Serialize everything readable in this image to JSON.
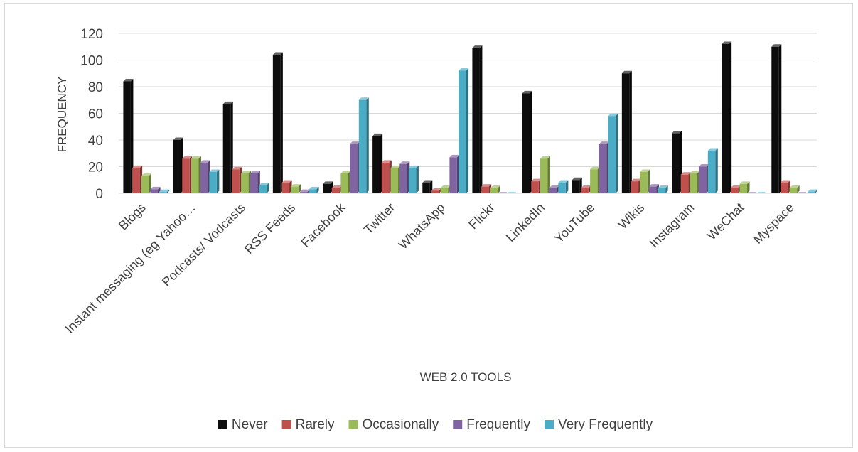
{
  "chart_data": {
    "type": "bar",
    "xlabel": "WEB 2.0 TOOLS",
    "ylabel": "FREQUENCY",
    "ylim": [
      0,
      120
    ],
    "yticks": [
      0,
      20,
      40,
      60,
      80,
      100,
      120
    ],
    "grid": true,
    "legend_position": "bottom",
    "categories": [
      "Blogs",
      "Instant messaging (eg Yahoo…",
      "Podcasts/ Vodcasts",
      "RSS Feeds",
      "Facebook",
      "Twitter",
      "WhatsApp",
      "Flickr",
      "LinkedIn",
      "YouTube",
      "Wikis",
      "Instagram",
      "WeChat",
      "Myspace"
    ],
    "series": [
      {
        "name": "Never",
        "color": "#0d0d0d",
        "values": [
          84,
          40,
          67,
          104,
          7,
          43,
          8,
          109,
          75,
          10,
          90,
          45,
          112,
          110
        ]
      },
      {
        "name": "Rarely",
        "color": "#c0504d",
        "values": [
          19,
          26,
          18,
          8,
          4,
          23,
          2,
          5,
          9,
          4,
          9,
          14,
          4,
          8
        ]
      },
      {
        "name": "Occasionally",
        "color": "#9bbb59",
        "values": [
          13,
          26,
          15,
          5,
          15,
          19,
          4,
          4,
          26,
          18,
          16,
          15,
          7,
          4
        ]
      },
      {
        "name": "Frequently",
        "color": "#8064a2",
        "values": [
          3,
          23,
          15,
          1,
          37,
          22,
          27,
          0,
          4,
          37,
          5,
          20,
          0,
          0
        ]
      },
      {
        "name": "Very Frequently",
        "color": "#4bacc6",
        "values": [
          1,
          16,
          6,
          3,
          70,
          19,
          92,
          0,
          8,
          58,
          4,
          32,
          0,
          1
        ]
      }
    ]
  }
}
